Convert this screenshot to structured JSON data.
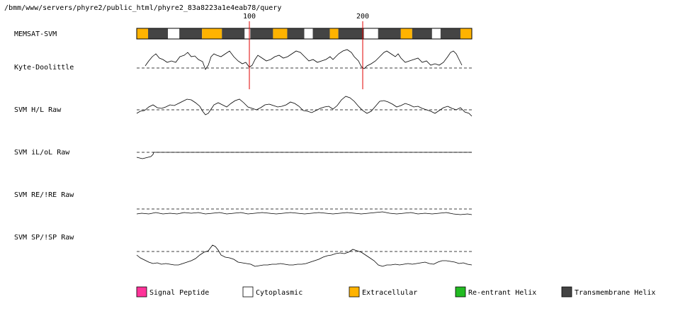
{
  "header": {
    "path": "/bmm/www/servers/phyre2/public_html/phyre2_83a8223a1e4eab78/query"
  },
  "ruler": {
    "ticks": [
      "100",
      "200"
    ]
  },
  "tracks": [
    {
      "label": "MEMSAT-SVM"
    },
    {
      "label": "Kyte-Doolittle"
    },
    {
      "label": "SVM H/L Raw"
    },
    {
      "label": "SVM iL/oL Raw"
    },
    {
      "label": "SVM RE/!RE Raw"
    },
    {
      "label": "SVM SP/!SP Raw"
    }
  ],
  "topology": [
    {
      "type": "extracellular",
      "length": 4
    },
    {
      "type": "helix",
      "length": 7
    },
    {
      "type": "cytoplasmic",
      "length": 4
    },
    {
      "type": "helix",
      "length": 8
    },
    {
      "type": "extracellular",
      "length": 7
    },
    {
      "type": "helix",
      "length": 8
    },
    {
      "type": "cytoplasmic",
      "length": 2
    },
    {
      "type": "helix",
      "length": 8
    },
    {
      "type": "extracellular",
      "length": 5
    },
    {
      "type": "helix",
      "length": 6
    },
    {
      "type": "cytoplasmic",
      "length": 3
    },
    {
      "type": "helix",
      "length": 6
    },
    {
      "type": "extracellular",
      "length": 3
    },
    {
      "type": "helix",
      "length": 9
    },
    {
      "type": "cytoplasmic",
      "length": 5
    },
    {
      "type": "helix",
      "length": 8
    },
    {
      "type": "extracellular",
      "length": 4
    },
    {
      "type": "helix",
      "length": 7
    },
    {
      "type": "cytoplasmic",
      "length": 3
    },
    {
      "type": "helix",
      "length": 7
    },
    {
      "type": "extracellular",
      "length": 4
    }
  ],
  "legend": [
    {
      "label": "Signal Peptide",
      "color": "#ff3399"
    },
    {
      "label": "Cytoplasmic",
      "color": "#ffffff"
    },
    {
      "label": "Extracellular",
      "color": "#ffb300"
    },
    {
      "label": "Re-entrant Helix",
      "color": "#22bb22"
    },
    {
      "label": "Transmembrane Helix",
      "color": "#444444"
    }
  ]
}
